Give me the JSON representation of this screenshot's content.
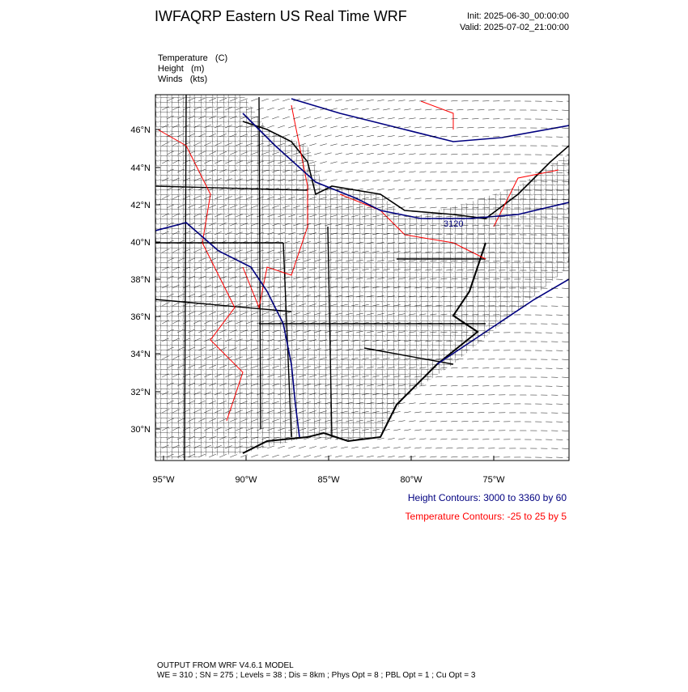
{
  "header": {
    "title": "IWFAQRP Eastern US Real Time WRF",
    "init": "Init: 2025-06-30_00:00:00",
    "valid": "Valid: 2025-07-02_21:00:00"
  },
  "fields": [
    "Temperature   (C)",
    "Height   (m)",
    "Winds   (kts)"
  ],
  "map": {
    "lat_labels": [
      "46°N",
      "44°N",
      "42°N",
      "40°N",
      "38°N",
      "36°N",
      "34°N",
      "32°N",
      "30°N"
    ],
    "lon_labels": [
      "95°W",
      "90°W",
      "85°W",
      "80°W",
      "75°W"
    ],
    "contour_label": "3120"
  },
  "legend": {
    "height": "Height Contours: 3000 to 3360 by 60",
    "temperature": "Temperature Contours: -25 to 25 by 5"
  },
  "footer": {
    "line1": "OUTPUT FROM WRF V4.6.1 MODEL",
    "line2": "WE = 310 ; SN = 275 ; Levels = 38 ; Dis = 8km ; Phys Opt = 8 ; PBL Opt = 1 ; Cu Opt = 3"
  }
}
